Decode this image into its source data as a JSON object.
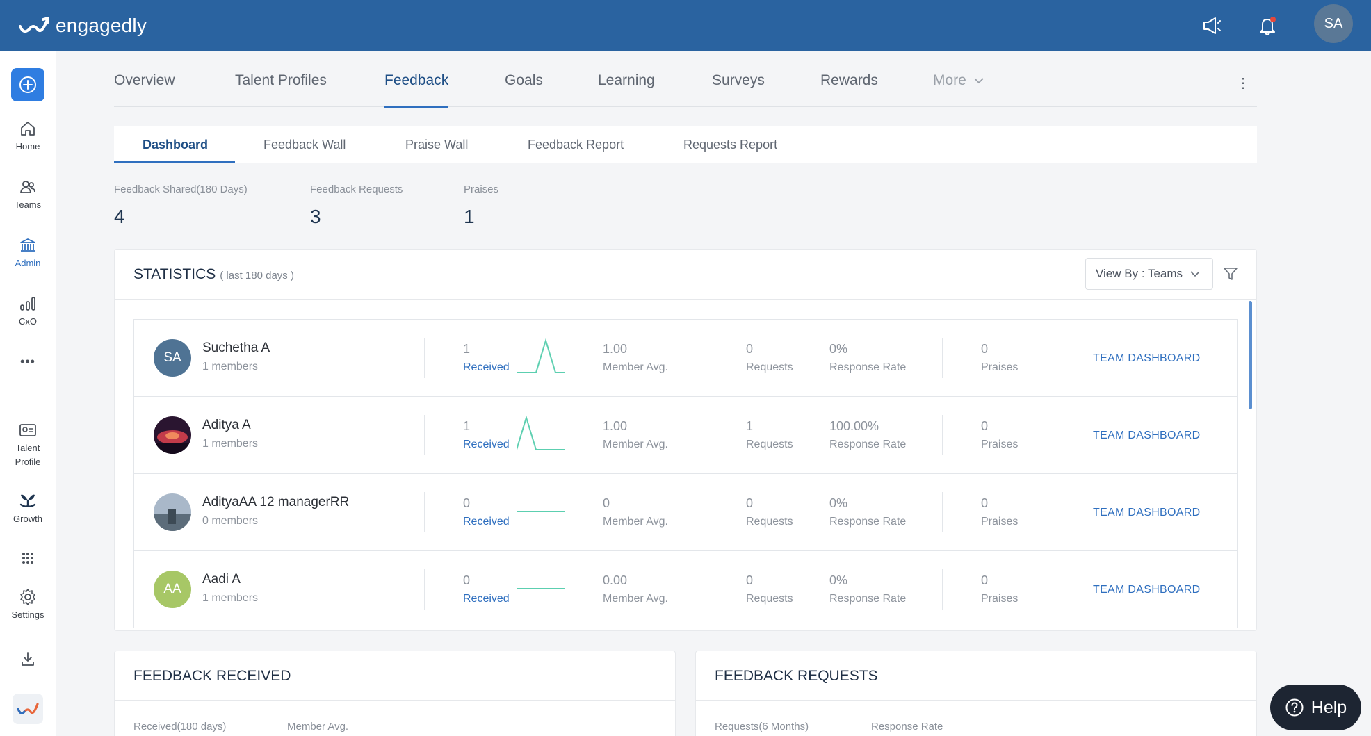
{
  "app": {
    "logo_text": "engagedly",
    "accent": "#2a63a0",
    "avatar_initials": "SA"
  },
  "topbar": {
    "icons": [
      "announcement-icon",
      "bell-icon"
    ]
  },
  "rail": {
    "items": [
      {
        "label": "Home",
        "icon": "home-icon"
      },
      {
        "label": "Teams",
        "icon": "teams-icon"
      },
      {
        "label": "Admin",
        "icon": "admin-icon"
      },
      {
        "label": "CxO",
        "icon": "bar-chart-icon"
      },
      {
        "label": "Talent Profile",
        "icon": "profile-card-icon"
      },
      {
        "label": "Growth",
        "icon": "growth-icon"
      },
      {
        "label": "Settings",
        "icon": "gear-icon"
      }
    ]
  },
  "main_tabs": [
    "Overview",
    "Talent Profiles",
    "Feedback",
    "Goals",
    "Learning",
    "Surveys",
    "Rewards",
    "More"
  ],
  "sub_tabs": [
    "Dashboard",
    "Feedback Wall",
    "Praise Wall",
    "Feedback Report",
    "Requests Report"
  ],
  "summary": [
    {
      "label": "Feedback Shared(180 Days)",
      "value": "4"
    },
    {
      "label": "Feedback Requests",
      "value": "3"
    },
    {
      "label": "Praises",
      "value": "1"
    }
  ],
  "statistics": {
    "title": "STATISTICS",
    "subtitle": "( last 180 days )",
    "view_by": "View By : Teams",
    "labels": {
      "received": "Received",
      "member_avg": "Member Avg.",
      "requests": "Requests",
      "response_rate": "Response Rate",
      "praises": "Praises",
      "team_dashboard": "TEAM DASHBOARD"
    },
    "teams": [
      {
        "name": "Suchetha A",
        "members": "1 members",
        "initials": "SA",
        "received": "1",
        "member_avg": "1.00",
        "requests": "0",
        "response_rate": "0%",
        "praises": "0",
        "spark": "peak-center"
      },
      {
        "name": "Aditya A",
        "members": "1 members",
        "initials": "",
        "received": "1",
        "member_avg": "1.00",
        "requests": "1",
        "response_rate": "100.00%",
        "praises": "0",
        "spark": "peak-left"
      },
      {
        "name": "AdityaAA 12 managerRR",
        "members": "0 members",
        "initials": "",
        "received": "0",
        "member_avg": "0",
        "requests": "0",
        "response_rate": "0%",
        "praises": "0",
        "spark": "flat"
      },
      {
        "name": "Aadi A",
        "members": "1 members",
        "initials": "AA",
        "received": "0",
        "member_avg": "0.00",
        "requests": "0",
        "response_rate": "0%",
        "praises": "0",
        "spark": "flat"
      }
    ]
  },
  "feedback_received": {
    "title": "FEEDBACK RECEIVED",
    "labels": [
      "Received(180 days)",
      "Member Avg."
    ]
  },
  "feedback_requests": {
    "title": "FEEDBACK REQUESTS",
    "labels": [
      "Requests(6 Months)",
      "Response Rate"
    ]
  },
  "help": {
    "label": "Help"
  }
}
